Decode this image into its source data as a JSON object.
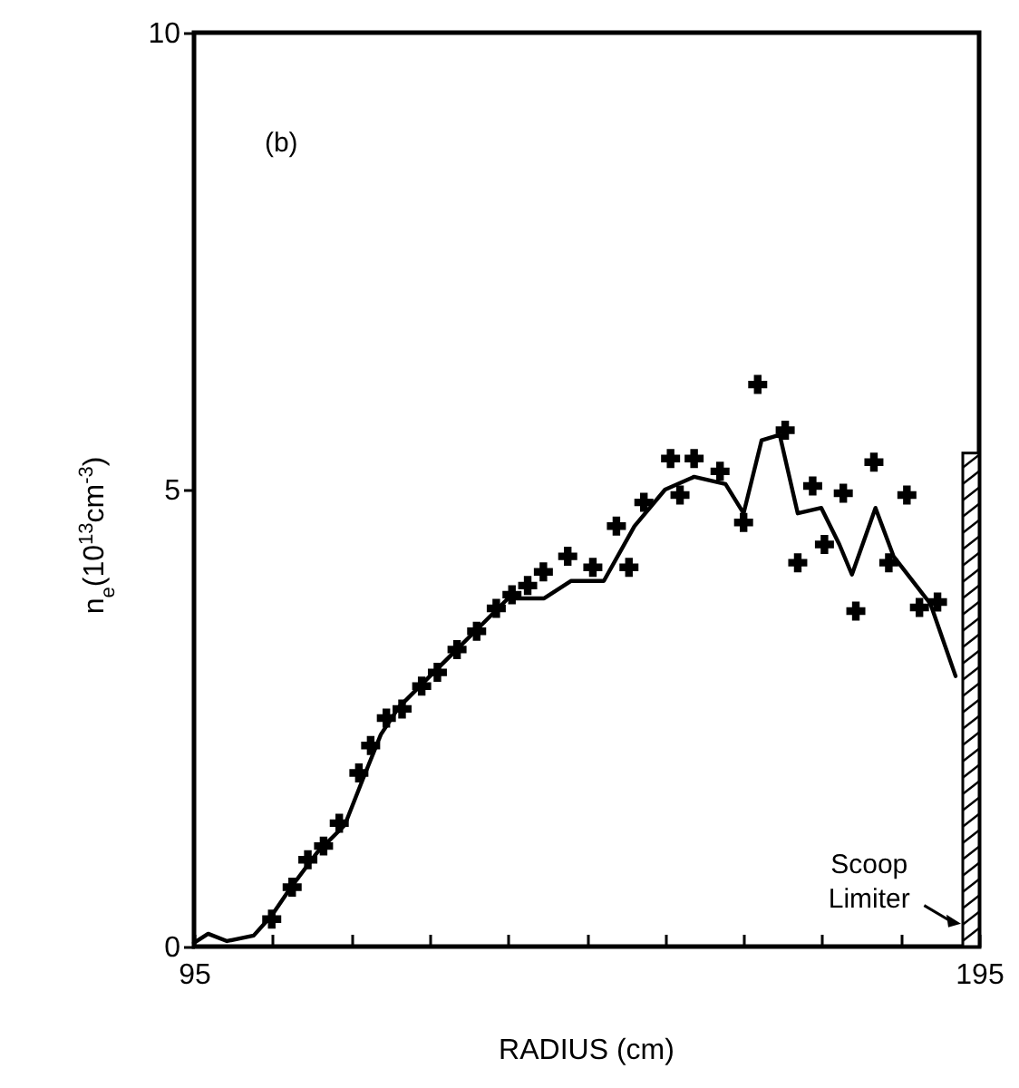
{
  "chart_data": {
    "type": "line",
    "xlabel": "RADIUS (cm)",
    "ylabel": "n$_{e}$(10$^{13}$cm$^{-3}$)",
    "annotations": [
      "(b)",
      "Scoop Limiter"
    ],
    "xlim": [
      95,
      195
    ],
    "xticks": [
      95,
      {
        "value": 105,
        "label": null
      },
      {
        "value": 115,
        "label": null
      },
      {
        "value": 125,
        "label": null
      },
      {
        "value": 135,
        "label": null
      },
      {
        "value": 145,
        "label": null
      },
      {
        "value": 155,
        "label": null
      },
      {
        "value": 165,
        "label": null
      },
      {
        "value": 175,
        "label": null
      },
      {
        "value": 185,
        "label": null
      },
      195
    ],
    "ylim": [
      0,
      10
    ],
    "yticks": [
      0,
      5,
      10
    ],
    "series": [
      {
        "type": "line",
        "marker": "none",
        "color": "#000000",
        "x": [
          95,
          96.8,
          99.2,
          102.6,
          104.9,
          107.2,
          110.7,
          114.2,
          116.5,
          118.8,
          121.1,
          124.6,
          128,
          131.5,
          135,
          139.6,
          143,
          147.2,
          151.1,
          155,
          158.7,
          162.7,
          165,
          167.3,
          169.6,
          171.9,
          174.9,
          177.2,
          178.8,
          181.8,
          184.1,
          188.8,
          192
        ],
        "values": [
          0.04,
          0.14,
          0.06,
          0.12,
          0.34,
          0.63,
          1.03,
          1.33,
          1.83,
          2.32,
          2.62,
          2.92,
          3.21,
          3.51,
          3.81,
          3.81,
          4.0,
          4.0,
          4.6,
          5.0,
          5.14,
          5.06,
          4.74,
          5.54,
          5.6,
          4.74,
          4.8,
          4.4,
          4.07,
          4.8,
          4.27,
          3.75,
          2.96
        ]
      },
      {
        "type": "scatter",
        "marker": "cross",
        "color": "#000000",
        "x": [
          104.9,
          107.5,
          109.5,
          111.5,
          113.5,
          116,
          117.5,
          119.5,
          121.5,
          124,
          126,
          128.5,
          131,
          133.5,
          135.5,
          137.5,
          139.5,
          142.6,
          145.8,
          148.8,
          150.4,
          152.3,
          155.7,
          156.9,
          158.7,
          162,
          165,
          166.8,
          170.3,
          171.9,
          173.8,
          175.3,
          177.7,
          179.3,
          181.6,
          183.5,
          185.8,
          187.4,
          189.7
        ],
        "values": [
          0.3,
          0.65,
          0.95,
          1.1,
          1.35,
          1.9,
          2.2,
          2.5,
          2.6,
          2.85,
          3.0,
          3.25,
          3.45,
          3.7,
          3.85,
          3.95,
          4.1,
          4.27,
          4.15,
          4.6,
          4.15,
          4.86,
          5.34,
          4.94,
          5.34,
          5.2,
          4.64,
          6.15,
          5.65,
          4.2,
          5.04,
          4.4,
          4.96,
          3.67,
          5.3,
          4.2,
          4.94,
          3.71,
          3.77
        ]
      }
    ]
  }
}
